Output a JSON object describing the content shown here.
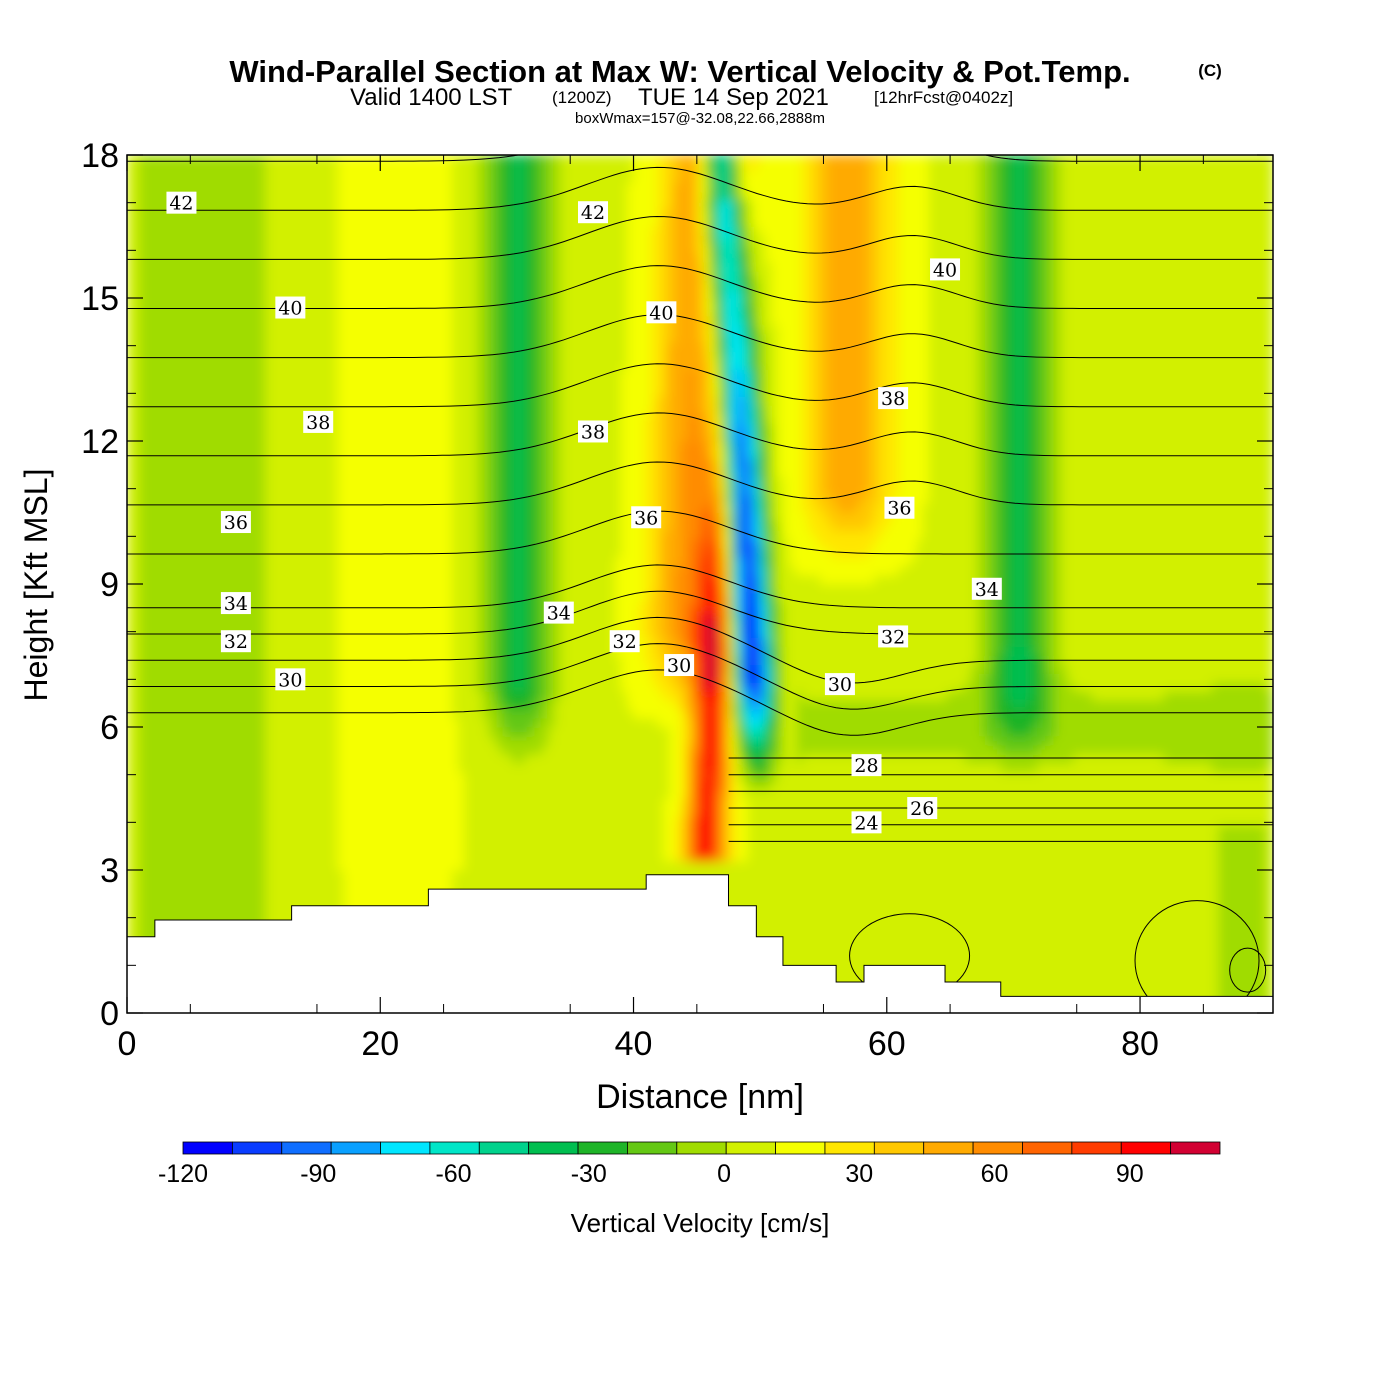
{
  "title": {
    "main": "Wind-Parallel Section at Max W: Vertical Velocity & Pot.Temp.",
    "copyright": "(C)",
    "valid_prefix": "Valid 1400 LST",
    "valid_utc": "(1200Z)",
    "valid_date": "TUE 14 Sep 2021",
    "forecast": "[12hrFcst@0402z]",
    "subtitle": "boxWmax=157@-32.08,22.66,2888m"
  },
  "chart_data": {
    "type": "heatmap",
    "xlabel": "Distance [nm]",
    "ylabel": "Height [Kft MSL]",
    "xlim": [
      0,
      90.5
    ],
    "ylim": [
      0,
      18
    ],
    "x_ticks": [
      "0",
      "20",
      "40",
      "60",
      "80"
    ],
    "y_ticks": [
      "0",
      "3",
      "6",
      "9",
      "12",
      "15",
      "18"
    ],
    "colorbar": {
      "label": "Vertical Velocity [cm/s]",
      "tick_labels": [
        "-120",
        "-90",
        "-60",
        "-30",
        "0",
        "30",
        "60",
        "90"
      ],
      "tick_values": [
        -120,
        -90,
        -60,
        -30,
        0,
        30,
        60,
        90
      ],
      "min": -120,
      "max": 110,
      "colors": [
        "#0000ff",
        "#0a3cff",
        "#0f6eff",
        "#0aa0ff",
        "#00e6ff",
        "#00e6c8",
        "#00d28c",
        "#00be50",
        "#1eb428",
        "#64c814",
        "#a0dc00",
        "#d2f000",
        "#f5ff00",
        "#ffe600",
        "#ffc800",
        "#ffaa00",
        "#ff8c00",
        "#ff6400",
        "#ff3c00",
        "#ff0000",
        "#d20032"
      ]
    },
    "velocity_features": [
      {
        "kind": "updraft core",
        "x": 45.5,
        "y_bottom": 3.2,
        "y_top": 7.5,
        "w_max": 95
      },
      {
        "kind": "updraft flank",
        "x": 44,
        "y_bottom": 6,
        "y_top": 18,
        "w_max": 55
      },
      {
        "kind": "updraft flank",
        "x": 57,
        "y_bottom": 9,
        "y_top": 18,
        "w_max": 55
      },
      {
        "kind": "downdraft core",
        "x": 50,
        "y_bottom": 4.5,
        "y_top": 18,
        "w_min": -118
      },
      {
        "kind": "downdraft band",
        "x": 31,
        "y_bottom": 6.9,
        "y_top": 18,
        "w_min": -35
      },
      {
        "kind": "downdraft band",
        "x": 70.5,
        "y_bottom": 7,
        "y_top": 18,
        "w_min": -35
      }
    ],
    "terrain_kft": [
      {
        "x0": 0,
        "x1": 2.2,
        "h": 1.6
      },
      {
        "x0": 2.2,
        "x1": 13,
        "h": 1.95
      },
      {
        "x0": 13,
        "x1": 23.8,
        "h": 2.25
      },
      {
        "x0": 23.8,
        "x1": 41,
        "h": 2.6
      },
      {
        "x0": 41,
        "x1": 47.5,
        "h": 2.9
      },
      {
        "x0": 47.5,
        "x1": 49.7,
        "h": 2.25
      },
      {
        "x0": 49.7,
        "x1": 51.8,
        "h": 1.6
      },
      {
        "x0": 51.8,
        "x1": 56,
        "h": 1.0
      },
      {
        "x0": 56,
        "x1": 58.2,
        "h": 0.65
      },
      {
        "x0": 58.2,
        "x1": 64.6,
        "h": 1.0
      },
      {
        "x0": 64.6,
        "x1": 69,
        "h": 0.65
      },
      {
        "x0": 69,
        "x1": 90.5,
        "h": 0.35
      }
    ],
    "isentrope_labels": [
      {
        "text": "42",
        "x": 4.3,
        "y": 17.0
      },
      {
        "text": "42",
        "x": 36.8,
        "y": 16.8
      },
      {
        "text": "40",
        "x": 12.9,
        "y": 14.8
      },
      {
        "text": "40",
        "x": 42.2,
        "y": 14.7
      },
      {
        "text": "40",
        "x": 64.6,
        "y": 15.6
      },
      {
        "text": "38",
        "x": 15.1,
        "y": 12.4
      },
      {
        "text": "38",
        "x": 36.8,
        "y": 12.2
      },
      {
        "text": "38",
        "x": 60.5,
        "y": 12.9
      },
      {
        "text": "36",
        "x": 8.6,
        "y": 10.3
      },
      {
        "text": "36",
        "x": 41.0,
        "y": 10.4
      },
      {
        "text": "36",
        "x": 61.0,
        "y": 10.6
      },
      {
        "text": "34",
        "x": 8.6,
        "y": 8.6
      },
      {
        "text": "34",
        "x": 34.1,
        "y": 8.4
      },
      {
        "text": "34",
        "x": 67.9,
        "y": 8.9
      },
      {
        "text": "32",
        "x": 8.6,
        "y": 7.8
      },
      {
        "text": "32",
        "x": 39.3,
        "y": 7.8
      },
      {
        "text": "32",
        "x": 60.5,
        "y": 7.9
      },
      {
        "text": "30",
        "x": 12.9,
        "y": 7.0
      },
      {
        "text": "30",
        "x": 43.6,
        "y": 7.3
      },
      {
        "text": "30",
        "x": 56.3,
        "y": 6.9
      },
      {
        "text": "28",
        "x": 58.4,
        "y": 5.2
      },
      {
        "text": "26",
        "x": 62.8,
        "y": 4.3
      },
      {
        "text": "24",
        "x": 58.4,
        "y": 4.0
      }
    ]
  }
}
